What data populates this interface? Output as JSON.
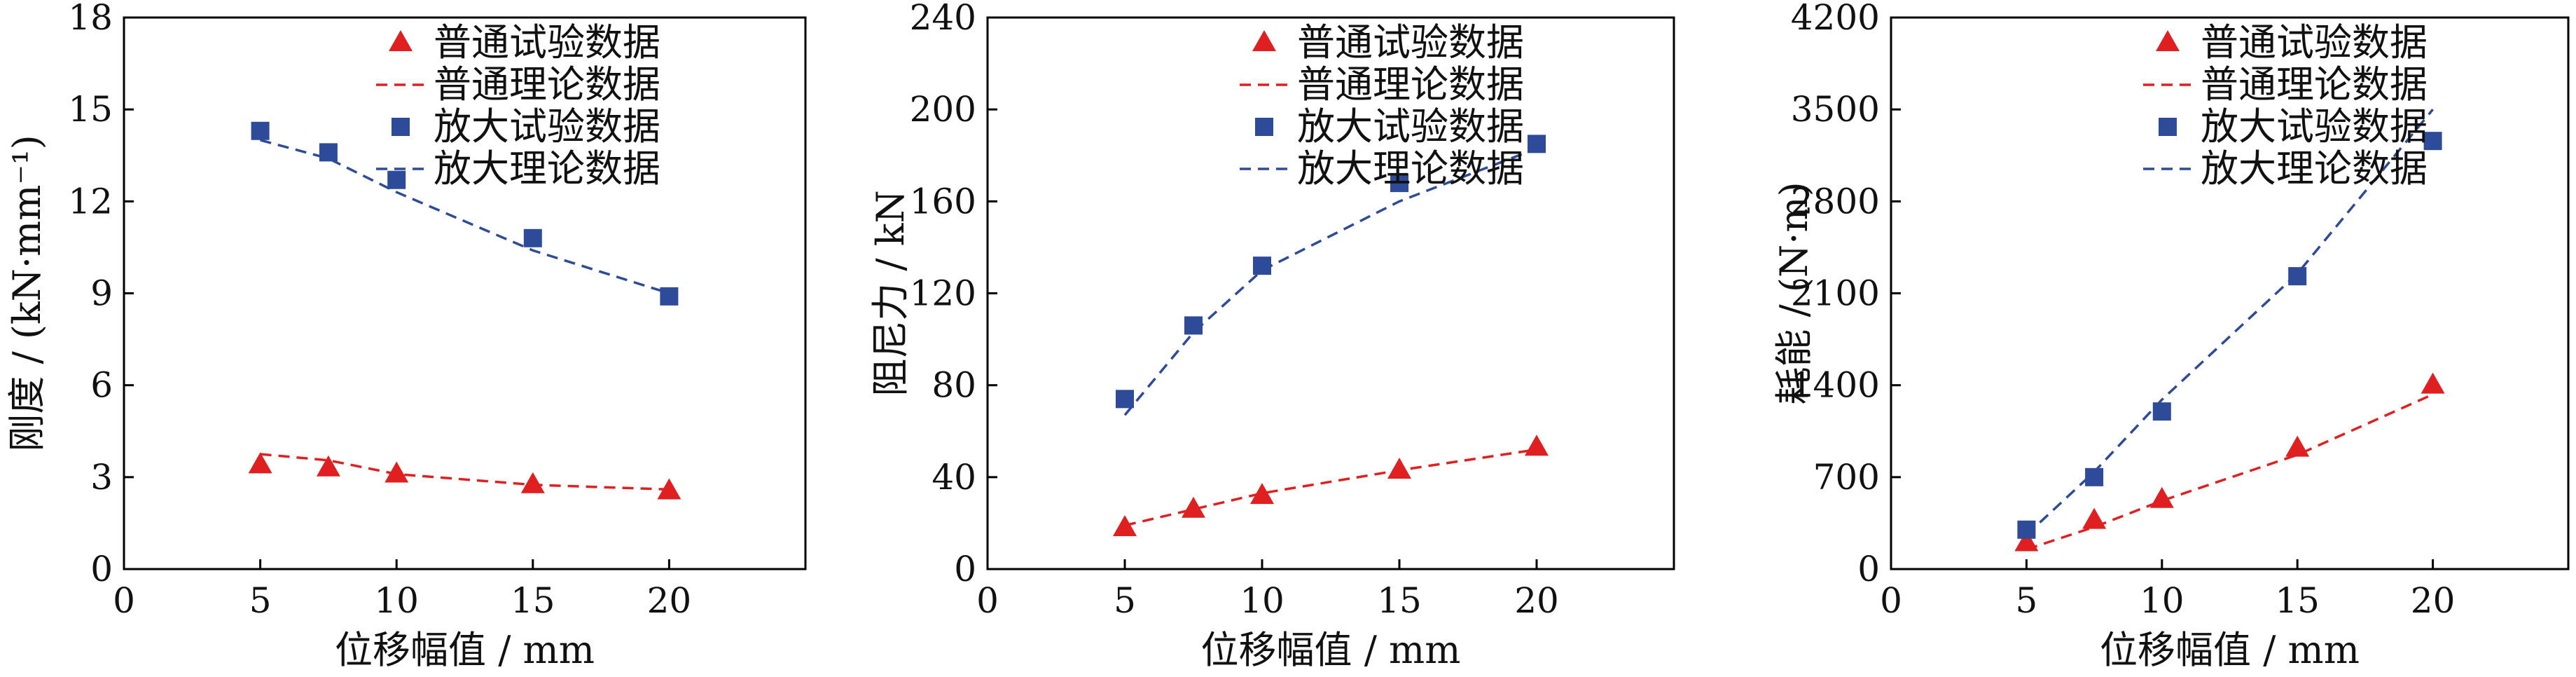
{
  "chart_data": [
    {
      "type": "scatter",
      "xlabel": "位移幅值 / mm",
      "ylabel": "刚度 / (kN·mm⁻¹)",
      "xlim": [
        0,
        25
      ],
      "ylim": [
        0,
        18
      ],
      "xticks": [
        0,
        5,
        10,
        15,
        20
      ],
      "yticks": [
        0,
        3,
        6,
        9,
        12,
        15,
        18
      ],
      "grid": false,
      "legend_position": "top-right",
      "series": [
        {
          "name": "普通试验数据",
          "kind": "marker",
          "marker": "triangle",
          "color": "#e02020",
          "x": [
            5,
            7.5,
            10,
            15,
            20
          ],
          "y": [
            3.4,
            3.3,
            3.1,
            2.75,
            2.55
          ]
        },
        {
          "name": "普通理论数据",
          "kind": "dashed",
          "color": "#e02020",
          "x": [
            5,
            7.5,
            10,
            15,
            20
          ],
          "y": [
            3.75,
            3.55,
            3.1,
            2.75,
            2.6
          ]
        },
        {
          "name": "放大试验数据",
          "kind": "marker",
          "marker": "square",
          "color": "#2e4b9a",
          "x": [
            5,
            7.5,
            10,
            15,
            20
          ],
          "y": [
            14.3,
            13.6,
            12.7,
            10.8,
            8.9
          ]
        },
        {
          "name": "放大理论数据",
          "kind": "dashed",
          "color": "#2e4b9a",
          "x": [
            5,
            7.5,
            10,
            15,
            20
          ],
          "y": [
            14.0,
            13.4,
            12.3,
            10.4,
            9.0
          ]
        }
      ]
    },
    {
      "type": "scatter",
      "xlabel": "位移幅值 / mm",
      "ylabel": "阻尼力 / kN",
      "xlim": [
        0,
        25
      ],
      "ylim": [
        0,
        240
      ],
      "xticks": [
        0,
        5,
        10,
        15,
        20
      ],
      "yticks": [
        0,
        40,
        80,
        120,
        160,
        200,
        240
      ],
      "grid": false,
      "legend_position": "top-right",
      "series": [
        {
          "name": "普通试验数据",
          "kind": "marker",
          "marker": "triangle",
          "color": "#e02020",
          "x": [
            5,
            7.5,
            10,
            15,
            20
          ],
          "y": [
            18,
            26,
            32,
            43,
            53
          ]
        },
        {
          "name": "普通理论数据",
          "kind": "dashed",
          "color": "#e02020",
          "x": [
            5,
            7.5,
            10,
            15,
            20
          ],
          "y": [
            19,
            26,
            33,
            43,
            52
          ]
        },
        {
          "name": "放大试验数据",
          "kind": "marker",
          "marker": "square",
          "color": "#2e4b9a",
          "x": [
            5,
            7.5,
            10,
            15,
            20
          ],
          "y": [
            74,
            106,
            132,
            168,
            185
          ]
        },
        {
          "name": "放大理论数据",
          "kind": "dashed",
          "color": "#2e4b9a",
          "x": [
            5,
            7.5,
            10,
            15,
            20
          ],
          "y": [
            67,
            103,
            130,
            160,
            183
          ]
        }
      ]
    },
    {
      "type": "scatter",
      "xlabel": "位移幅值 / mm",
      "ylabel": "耗能 / (N·m)",
      "xlim": [
        0,
        25
      ],
      "ylim": [
        0,
        4200
      ],
      "xticks": [
        0,
        5,
        10,
        15,
        20
      ],
      "yticks": [
        0,
        700,
        1400,
        2100,
        2800,
        3500,
        4200
      ],
      "grid": false,
      "legend_position": "top-right",
      "series": [
        {
          "name": "普通试验数据",
          "kind": "marker",
          "marker": "triangle",
          "color": "#e02020",
          "x": [
            5,
            7.5,
            10,
            15,
            20
          ],
          "y": [
            200,
            370,
            530,
            920,
            1400
          ]
        },
        {
          "name": "普通理论数据",
          "kind": "dashed",
          "color": "#e02020",
          "x": [
            5,
            7.5,
            10,
            15,
            20
          ],
          "y": [
            150,
            320,
            520,
            870,
            1330
          ]
        },
        {
          "name": "放大试验数据",
          "kind": "marker",
          "marker": "square",
          "color": "#2e4b9a",
          "x": [
            5,
            7.5,
            10,
            15,
            20
          ],
          "y": [
            300,
            700,
            1200,
            2230,
            3260
          ]
        },
        {
          "name": "放大理论数据",
          "kind": "dashed",
          "color": "#2e4b9a",
          "x": [
            5,
            7.5,
            10,
            15,
            20
          ],
          "y": [
            260,
            740,
            1290,
            2250,
            3500
          ]
        }
      ]
    }
  ]
}
